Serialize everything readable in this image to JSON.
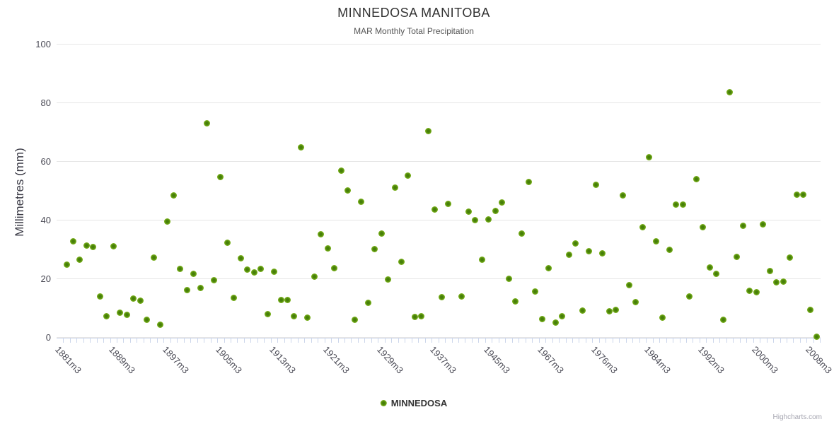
{
  "header": {
    "title": "MINNEDOSA MANITOBA",
    "subtitle": "MAR Monthly Total Precipitation"
  },
  "legend": {
    "series_label": "MINNEDOSA"
  },
  "credits": {
    "text": "Highcharts.com"
  },
  "colors": {
    "marker": "#8bbc21",
    "grid": "#e6e6e6",
    "axis": "#ccd6eb"
  },
  "chart_data": {
    "type": "scatter",
    "title": "MINNEDOSA MANITOBA",
    "subtitle": "MAR Monthly Total Precipitation",
    "xlabel": "",
    "ylabel": "Millimetres (mm)",
    "ylim": [
      0,
      100
    ],
    "y_ticks": [
      0,
      20,
      40,
      60,
      80,
      100
    ],
    "grid": true,
    "legend_position": "bottom-center",
    "x_axis_total_categories": 113,
    "x_tick_labels": [
      {
        "index": 0,
        "text": "1881m3"
      },
      {
        "index": 8,
        "text": "1889m3"
      },
      {
        "index": 16,
        "text": "1897m3"
      },
      {
        "index": 24,
        "text": "1905m3"
      },
      {
        "index": 32,
        "text": "1913m3"
      },
      {
        "index": 40,
        "text": "1921m3"
      },
      {
        "index": 48,
        "text": "1929m3"
      },
      {
        "index": 56,
        "text": "1937m3"
      },
      {
        "index": 64,
        "text": "1945m3"
      },
      {
        "index": 72,
        "text": "1967m3"
      },
      {
        "index": 80,
        "text": "1976m3"
      },
      {
        "index": 88,
        "text": "1984m3"
      },
      {
        "index": 96,
        "text": "1992m3"
      },
      {
        "index": 104,
        "text": "2000m3"
      },
      {
        "index": 112,
        "text": "2008m3"
      }
    ],
    "series": [
      {
        "name": "MINNEDOSA",
        "color": "#8bbc21",
        "points_format": "[category_index, millimetres]",
        "points": [
          [
            0,
            24.8
          ],
          [
            1,
            32.8
          ],
          [
            2,
            26.5
          ],
          [
            3,
            31.3
          ],
          [
            4,
            30.8
          ],
          [
            5,
            14
          ],
          [
            6,
            7.2
          ],
          [
            7,
            31.1
          ],
          [
            8,
            8.4
          ],
          [
            9,
            7.7
          ],
          [
            10,
            13.3
          ],
          [
            11,
            12.5
          ],
          [
            12,
            6
          ],
          [
            13,
            27.2
          ],
          [
            14,
            4.3
          ],
          [
            15,
            39.5
          ],
          [
            16,
            48.4
          ],
          [
            17,
            23.4
          ],
          [
            18,
            16.1
          ],
          [
            19,
            21.7
          ],
          [
            20,
            16.9
          ],
          [
            21,
            73
          ],
          [
            22,
            19.5
          ],
          [
            23,
            54.7
          ],
          [
            24,
            32.3
          ],
          [
            25,
            13.5
          ],
          [
            26,
            27
          ],
          [
            27,
            23.1
          ],
          [
            28,
            22.2
          ],
          [
            29,
            23.4
          ],
          [
            30,
            8
          ],
          [
            31,
            22.4
          ],
          [
            32,
            12.8
          ],
          [
            33,
            12.8
          ],
          [
            34,
            7.2
          ],
          [
            35,
            64.8
          ],
          [
            36,
            6.7
          ],
          [
            37,
            20.7
          ],
          [
            38,
            35.2
          ],
          [
            39,
            30.4
          ],
          [
            40,
            23.6
          ],
          [
            41,
            56.9
          ],
          [
            42,
            50.1
          ],
          [
            43,
            6
          ],
          [
            44,
            46.2
          ],
          [
            45,
            11.8
          ],
          [
            46,
            30.1
          ],
          [
            47,
            35.4
          ],
          [
            48,
            19.8
          ],
          [
            49,
            51.1
          ],
          [
            50,
            25.8
          ],
          [
            51,
            55.2
          ],
          [
            52,
            7
          ],
          [
            53,
            7.2
          ],
          [
            54,
            70.4
          ],
          [
            55,
            43.6
          ],
          [
            56,
            13.7
          ],
          [
            57,
            45.5
          ],
          [
            59,
            14
          ],
          [
            60,
            42.9
          ],
          [
            61,
            40
          ],
          [
            62,
            26.5
          ],
          [
            63,
            40.2
          ],
          [
            64,
            43.1
          ],
          [
            65,
            46
          ],
          [
            66,
            20
          ],
          [
            67,
            12.3
          ],
          [
            68,
            35.4
          ],
          [
            69,
            53
          ],
          [
            70,
            15.7
          ],
          [
            71,
            6.3
          ],
          [
            72,
            23.6
          ],
          [
            73,
            5.1
          ],
          [
            74,
            7.2
          ],
          [
            75,
            28.2
          ],
          [
            76,
            32
          ],
          [
            77,
            9.2
          ],
          [
            78,
            29.4
          ],
          [
            79,
            52
          ],
          [
            80,
            28.7
          ],
          [
            81,
            8.9
          ],
          [
            82,
            9.4
          ],
          [
            83,
            48.4
          ],
          [
            84,
            17.8
          ],
          [
            85,
            12
          ],
          [
            86,
            37.6
          ],
          [
            87,
            61.4
          ],
          [
            88,
            32.8
          ],
          [
            89,
            6.7
          ],
          [
            90,
            29.9
          ],
          [
            91,
            45.3
          ],
          [
            92,
            45.3
          ],
          [
            93,
            14
          ],
          [
            94,
            54
          ],
          [
            95,
            37.6
          ],
          [
            96,
            23.9
          ],
          [
            97,
            21.7
          ],
          [
            98,
            6
          ],
          [
            99,
            83.6
          ],
          [
            100,
            27.5
          ],
          [
            101,
            38.1
          ],
          [
            102,
            15.9
          ],
          [
            103,
            15.4
          ],
          [
            104,
            38.6
          ],
          [
            105,
            22.7
          ],
          [
            106,
            18.8
          ],
          [
            107,
            19
          ],
          [
            108,
            27.2
          ],
          [
            109,
            48.7
          ],
          [
            110,
            48.7
          ],
          [
            111,
            9.4
          ],
          [
            112,
            0.3
          ]
        ]
      }
    ]
  }
}
